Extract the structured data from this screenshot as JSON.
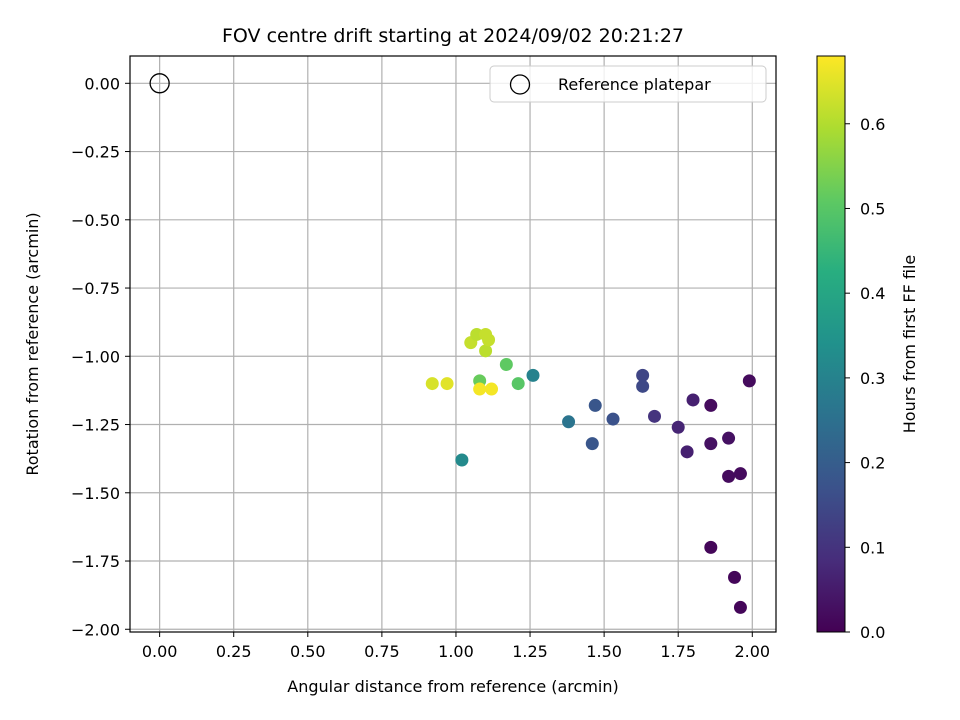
{
  "chart_data": {
    "type": "scatter",
    "title": "FOV centre drift starting at 2024/09/02 20:21:27",
    "xlabel": "Angular distance from reference (arcmin)",
    "ylabel": "Rotation from reference (arcmin)",
    "xlim": [
      -0.1,
      2.08
    ],
    "ylim": [
      -2.01,
      0.1
    ],
    "xticks": [
      "0.00",
      "0.25",
      "0.50",
      "0.75",
      "1.00",
      "1.25",
      "1.50",
      "1.75",
      "2.00"
    ],
    "yticks": [
      "0.00",
      "−0.25",
      "−0.50",
      "−0.75",
      "−1.00",
      "−1.25",
      "−1.50",
      "−1.75",
      "−2.00"
    ],
    "grid": true,
    "legend": {
      "placement": "top-right",
      "entries": [
        "Reference platepar"
      ]
    },
    "reference_point": {
      "x": 0.0,
      "y": 0.0
    },
    "colorbar": {
      "label": "Hours from first FF file",
      "range": [
        0.0,
        0.68
      ],
      "ticks": [
        "0.0",
        "0.1",
        "0.2",
        "0.3",
        "0.4",
        "0.5",
        "0.6"
      ],
      "colormap": "viridis"
    },
    "points": [
      {
        "x": 1.86,
        "y": -1.18,
        "c": 0.02
      },
      {
        "x": 1.99,
        "y": -1.09,
        "c": 0.02
      },
      {
        "x": 1.92,
        "y": -1.3,
        "c": 0.03
      },
      {
        "x": 1.86,
        "y": -1.32,
        "c": 0.03
      },
      {
        "x": 1.92,
        "y": -1.44,
        "c": 0.02
      },
      {
        "x": 1.96,
        "y": -1.43,
        "c": 0.02
      },
      {
        "x": 1.86,
        "y": -1.7,
        "c": 0.01
      },
      {
        "x": 1.94,
        "y": -1.81,
        "c": 0.01
      },
      {
        "x": 1.96,
        "y": -1.92,
        "c": 0.01
      },
      {
        "x": 1.8,
        "y": -1.16,
        "c": 0.06
      },
      {
        "x": 1.75,
        "y": -1.26,
        "c": 0.07
      },
      {
        "x": 1.78,
        "y": -1.35,
        "c": 0.06
      },
      {
        "x": 1.67,
        "y": -1.22,
        "c": 0.1
      },
      {
        "x": 1.63,
        "y": -1.07,
        "c": 0.14
      },
      {
        "x": 1.63,
        "y": -1.11,
        "c": 0.15
      },
      {
        "x": 1.53,
        "y": -1.23,
        "c": 0.17
      },
      {
        "x": 1.47,
        "y": -1.18,
        "c": 0.18
      },
      {
        "x": 1.46,
        "y": -1.32,
        "c": 0.18
      },
      {
        "x": 1.38,
        "y": -1.24,
        "c": 0.26
      },
      {
        "x": 1.26,
        "y": -1.07,
        "c": 0.3
      },
      {
        "x": 1.02,
        "y": -1.38,
        "c": 0.32
      },
      {
        "x": 1.21,
        "y": -1.1,
        "c": 0.5
      },
      {
        "x": 1.17,
        "y": -1.03,
        "c": 0.51
      },
      {
        "x": 1.08,
        "y": -1.09,
        "c": 0.52
      },
      {
        "x": 1.05,
        "y": -0.95,
        "c": 0.62
      },
      {
        "x": 1.07,
        "y": -0.92,
        "c": 0.61
      },
      {
        "x": 1.1,
        "y": -0.98,
        "c": 0.61
      },
      {
        "x": 1.1,
        "y": -0.92,
        "c": 0.62
      },
      {
        "x": 1.11,
        "y": -0.94,
        "c": 0.62
      },
      {
        "x": 0.92,
        "y": -1.1,
        "c": 0.64
      },
      {
        "x": 0.97,
        "y": -1.1,
        "c": 0.65
      },
      {
        "x": 1.08,
        "y": -1.12,
        "c": 0.67
      },
      {
        "x": 1.12,
        "y": -1.12,
        "c": 0.67
      }
    ]
  }
}
